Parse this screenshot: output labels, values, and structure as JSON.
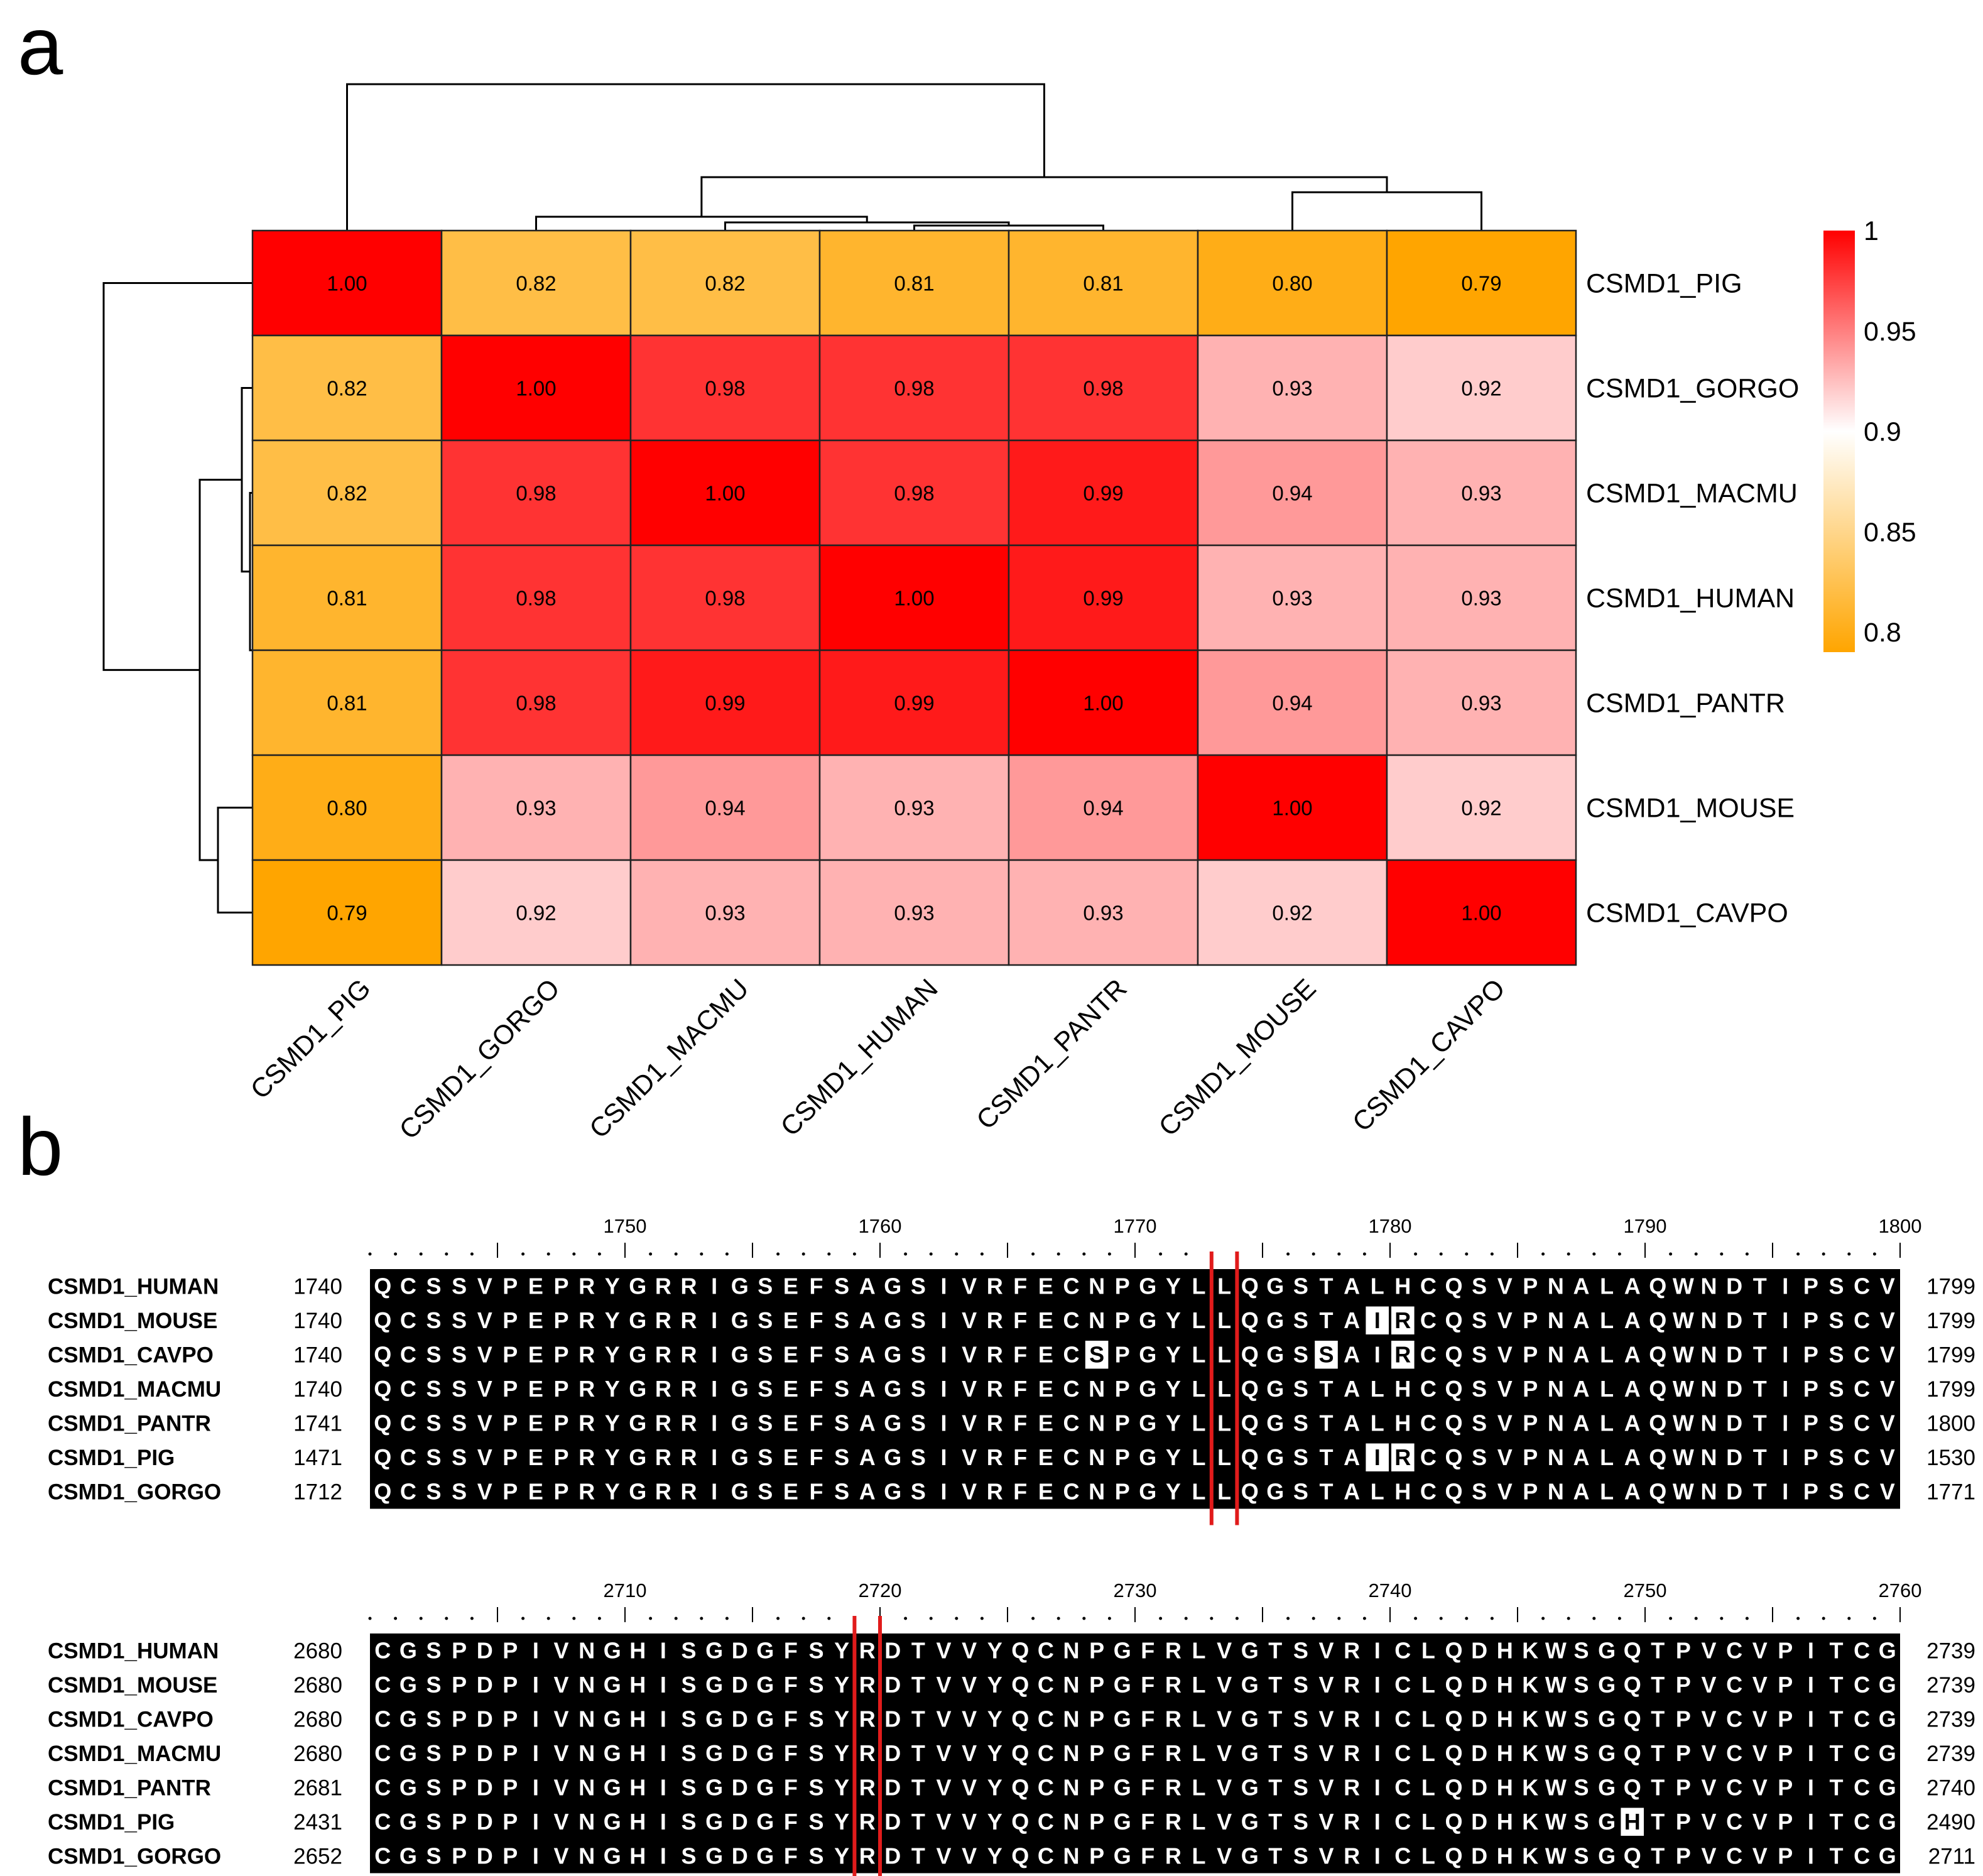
{
  "panel_a": {
    "label": "a",
    "chart_data": {
      "type": "heatmap",
      "row_labels": [
        "CSMD1_PIG",
        "CSMD1_GORGO",
        "CSMD1_MACMU",
        "CSMD1_HUMAN",
        "CSMD1_PANTR",
        "CSMD1_MOUSE",
        "CSMD1_CAVPO"
      ],
      "col_labels": [
        "CSMD1_PIG",
        "CSMD1_GORGO",
        "CSMD1_MACMU",
        "CSMD1_HUMAN",
        "CSMD1_PANTR",
        "CSMD1_MOUSE",
        "CSMD1_CAVPO"
      ],
      "values": [
        [
          1.0,
          0.82,
          0.82,
          0.81,
          0.81,
          0.8,
          0.79
        ],
        [
          0.82,
          1.0,
          0.98,
          0.98,
          0.98,
          0.93,
          0.92
        ],
        [
          0.82,
          0.98,
          1.0,
          0.98,
          0.99,
          0.94,
          0.93
        ],
        [
          0.81,
          0.98,
          0.98,
          1.0,
          0.99,
          0.93,
          0.93
        ],
        [
          0.81,
          0.98,
          0.99,
          0.99,
          1.0,
          0.94,
          0.93
        ],
        [
          0.8,
          0.93,
          0.94,
          0.93,
          0.94,
          1.0,
          0.92
        ],
        [
          0.79,
          0.92,
          0.93,
          0.93,
          0.93,
          0.92,
          1.0
        ]
      ],
      "cell_text": [
        [
          "1.00",
          "0.82",
          "0.82",
          "0.81",
          "0.81",
          "0.80",
          "0.79"
        ],
        [
          "0.82",
          "1.00",
          "0.98",
          "0.98",
          "0.98",
          "0.93",
          "0.92"
        ],
        [
          "0.82",
          "0.98",
          "1.00",
          "0.98",
          "0.99",
          "0.94",
          "0.93"
        ],
        [
          "0.81",
          "0.98",
          "0.98",
          "1.00",
          "0.99",
          "0.93",
          "0.93"
        ],
        [
          "0.81",
          "0.98",
          "0.99",
          "0.99",
          "1.00",
          "0.94",
          "0.93"
        ],
        [
          "0.80",
          "0.93",
          "0.94",
          "0.93",
          "0.94",
          "1.00",
          "0.92"
        ],
        [
          "0.79",
          "0.92",
          "0.93",
          "0.93",
          "0.93",
          "0.92",
          "1.00"
        ]
      ],
      "colorbar": {
        "range": [
          0.79,
          1.0
        ],
        "ticks": [
          1,
          0.95,
          0.9,
          0.85,
          0.8
        ],
        "tick_labels": [
          "1",
          "0.95",
          "0.9",
          "0.85",
          "0.8"
        ],
        "colors": {
          "low": "#FFA500",
          "mid": "#FFFFFF",
          "high": "#FF0000"
        },
        "mid_value": 0.9
      },
      "dendrogram": "hierarchical clustering tree drawn on top (columns) and left (rows)"
    }
  },
  "panel_b": {
    "label": "b",
    "blocks": [
      {
        "position_ticks": [
          "1750",
          "1760",
          "1770",
          "1780",
          "1790",
          "1800"
        ],
        "rows": [
          {
            "name": "CSMD1_HUMAN",
            "start": "1740",
            "end": "1799",
            "seq": "QCSSVPEPRYGRRIGSEFSAGSIVRFECNPGYLLQGSTALHCQSVPNALAQWNDTIPSCV",
            "highlight": []
          },
          {
            "name": "CSMD1_MOUSE",
            "start": "1740",
            "end": "1799",
            "seq": "QCSSVPEPRYGRRIGSEFSAGSIVRFECNPGYLLQGSTAIRCQSVPNALAQWNDTIPSCV",
            "highlight": [
              39,
              40
            ]
          },
          {
            "name": "CSMD1_CAVPO",
            "start": "1740",
            "end": "1799",
            "seq": "QCSSVPEPRYGRRIGSEFSAGSIVRFECSPGYLLQGSSAIRCQSVPNALAQWNDTIPSCV",
            "highlight": [
              28,
              37,
              40
            ]
          },
          {
            "name": "CSMD1_MACMU",
            "start": "1740",
            "end": "1799",
            "seq": "QCSSVPEPRYGRRIGSEFSAGSIVRFECNPGYLLQGSTALHCQSVPNALAQWNDTIPSCV",
            "highlight": []
          },
          {
            "name": "CSMD1_PANTR",
            "start": "1741",
            "end": "1800",
            "seq": "QCSSVPEPRYGRRIGSEFSAGSIVRFECNPGYLLQGSTALHCQSVPNALAQWNDTIPSCV",
            "highlight": []
          },
          {
            "name": "CSMD1_PIG",
            "start": "1471",
            "end": "1530",
            "seq": "QCSSVPEPRYGRRIGSEFSAGSIVRFECNPGYLLQGSTAIRCQSVPNALAQWNDTIPSCV",
            "highlight": [
              39,
              40
            ]
          },
          {
            "name": "CSMD1_GORGO",
            "start": "1712",
            "end": "1771",
            "seq": "QCSSVPEPRYGRRIGSEFSAGSIVRFECNPGYLLQGSTALHCQSVPNALAQWNDTIPSCV",
            "highlight": []
          }
        ],
        "marked_column": 33
      },
      {
        "position_ticks": [
          "2710",
          "2720",
          "2730",
          "2740",
          "2750",
          "2760"
        ],
        "rows": [
          {
            "name": "CSMD1_HUMAN",
            "start": "2680",
            "end": "2739",
            "seq": "CGSPDPIVNGHISGDGFSYRDTVVYQCNPGFRLVGTSVRICLQDHKWSGQTPVCVPITCG",
            "highlight": []
          },
          {
            "name": "CSMD1_MOUSE",
            "start": "2680",
            "end": "2739",
            "seq": "CGSPDPIVNGHISGDGFSYRDTVVYQCNPGFRLVGTSVRICLQDHKWSGQTPVCVPITCG",
            "highlight": []
          },
          {
            "name": "CSMD1_CAVPO",
            "start": "2680",
            "end": "2739",
            "seq": "CGSPDPIVNGHISGDGFSYRDTVVYQCNPGFRLVGTSVRICLQDHKWSGQTPVCVPITCG",
            "highlight": []
          },
          {
            "name": "CSMD1_MACMU",
            "start": "2680",
            "end": "2739",
            "seq": "CGSPDPIVNGHISGDGFSYRDTVVYQCNPGFRLVGTSVRICLQDHKWSGQTPVCVPITCG",
            "highlight": []
          },
          {
            "name": "CSMD1_PANTR",
            "start": "2681",
            "end": "2740",
            "seq": "CGSPDPIVNGHISGDGFSYRDTVVYQCNPGFRLVGTSVRICLQDHKWSGQTPVCVPITCG",
            "highlight": []
          },
          {
            "name": "CSMD1_PIG",
            "start": "2431",
            "end": "2490",
            "seq": "CGSPDPIVNGHISGDGFSYRDTVVYQCNPGFRLVGTSVRICLQDHKWSGHTPVCVPITCG",
            "highlight": [
              49
            ]
          },
          {
            "name": "CSMD1_GORGO",
            "start": "2652",
            "end": "2711",
            "seq": "CGSPDPIVNGHISGDGFSYRDTVVYQCNPGFRLVGTSVRICLQDHKWSGQTPVCVPITCG",
            "highlight": []
          }
        ],
        "marked_column": 19
      }
    ],
    "colors": {
      "background": "#000000",
      "letter": "#FFFFFF",
      "variant_bg": "#FFFFFF",
      "variant_letter": "#000000",
      "marker": "#E11B1B"
    }
  }
}
